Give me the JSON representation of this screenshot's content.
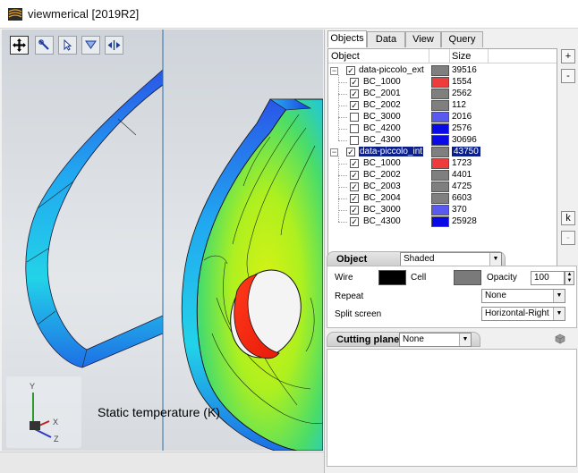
{
  "window": {
    "title": "viewmerical [2019R2]",
    "icon": "app-logo-icon"
  },
  "viewport": {
    "toolbar": [
      {
        "name": "move-tool-icon",
        "active": true
      },
      {
        "name": "zoom-tool-icon",
        "active": false
      },
      {
        "name": "select-tool-icon",
        "active": false
      },
      {
        "name": "filter-tool-icon",
        "active": false
      },
      {
        "name": "fit-tool-icon",
        "active": false
      }
    ],
    "legend_label": "Static temperature (K)",
    "axes": {
      "y": "Y",
      "x": "X",
      "z": "Z"
    }
  },
  "panel": {
    "tabs": [
      "Objects",
      "Data",
      "View",
      "Query"
    ],
    "active_tab": "Objects",
    "tree": {
      "columns": [
        "Object",
        "Size"
      ],
      "rows": [
        {
          "level": 0,
          "name": "data-piccolo_ext",
          "checked": true,
          "color": "#7f7f7f",
          "size": "39516",
          "selected": false,
          "expanded": true
        },
        {
          "level": 1,
          "name": "BC_1000",
          "checked": true,
          "color": "#ee3b3b",
          "size": "1554",
          "selected": false
        },
        {
          "level": 1,
          "name": "BC_2001",
          "checked": true,
          "color": "#7f7f7f",
          "size": "2562",
          "selected": false
        },
        {
          "level": 1,
          "name": "BC_2002",
          "checked": true,
          "color": "#7f7f7f",
          "size": "112",
          "selected": false
        },
        {
          "level": 1,
          "name": "BC_3000",
          "checked": false,
          "color": "#5a5af0",
          "size": "2016",
          "selected": false
        },
        {
          "level": 1,
          "name": "BC_4200",
          "checked": false,
          "color": "#0a0ae6",
          "size": "2576",
          "selected": false
        },
        {
          "level": 1,
          "name": "BC_4300",
          "checked": false,
          "color": "#0a0ae6",
          "size": "30696",
          "selected": false
        },
        {
          "level": 0,
          "name": "data-piccolo_int",
          "checked": true,
          "color": "#7f7f7f",
          "size": "43750",
          "selected": true,
          "expanded": true
        },
        {
          "level": 1,
          "name": "BC_1000",
          "checked": true,
          "color": "#ee3b3b",
          "size": "1723",
          "selected": false
        },
        {
          "level": 1,
          "name": "BC_2002",
          "checked": true,
          "color": "#7f7f7f",
          "size": "4401",
          "selected": false
        },
        {
          "level": 1,
          "name": "BC_2003",
          "checked": true,
          "color": "#7f7f7f",
          "size": "4725",
          "selected": false
        },
        {
          "level": 1,
          "name": "BC_2004",
          "checked": true,
          "color": "#7f7f7f",
          "size": "6603",
          "selected": false
        },
        {
          "level": 1,
          "name": "BC_3000",
          "checked": true,
          "color": "#5a5af0",
          "size": "370",
          "selected": false
        },
        {
          "level": 1,
          "name": "BC_4300",
          "checked": true,
          "color": "#0a0ae6",
          "size": "25928",
          "selected": false
        }
      ]
    },
    "side_buttons": {
      "add": "+",
      "remove": "-",
      "k": "k",
      "extra": "-"
    },
    "object_section": {
      "header": "Object",
      "render_mode": "Shaded",
      "wire_label": "Wire",
      "wire_color": "#000000",
      "cell_label": "Cell",
      "cell_color": "#7a7a7a",
      "opacity_label": "Opacity",
      "opacity_value": "100",
      "repeat_label": "Repeat",
      "repeat_value": "None",
      "split_label": "Split screen",
      "split_value": "Horizontal-Right"
    },
    "cutting_section": {
      "header": "Cutting plane",
      "value": "None"
    }
  }
}
